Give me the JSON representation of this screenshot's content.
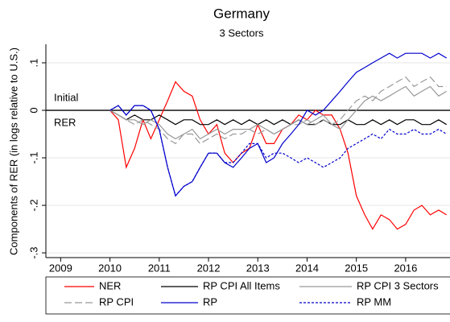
{
  "chart_data": {
    "type": "line",
    "title": "Germany",
    "subtitle": "3 Sectors",
    "y_label": "Components of RER (in logs relative to U.S.)",
    "annotations": [
      "Initial",
      "RER"
    ],
    "hline": 0,
    "x": [
      2010,
      2010.17,
      2010.33,
      2010.5,
      2010.67,
      2010.83,
      2011,
      2011.17,
      2011.33,
      2011.5,
      2011.67,
      2011.83,
      2012,
      2012.17,
      2012.33,
      2012.5,
      2012.67,
      2012.83,
      2013,
      2013.17,
      2013.33,
      2013.5,
      2013.67,
      2013.83,
      2014,
      2014.17,
      2014.33,
      2014.5,
      2014.67,
      2014.83,
      2015,
      2015.17,
      2015.33,
      2015.5,
      2015.67,
      2015.83,
      2016,
      2016.17,
      2016.33,
      2016.5,
      2016.67,
      2016.83
    ],
    "series": [
      {
        "name": "NER",
        "color": "#ff0000",
        "dashed": false,
        "values": [
          0,
          -0.02,
          -0.12,
          -0.08,
          -0.02,
          -0.06,
          -0.02,
          0.02,
          0.06,
          0.04,
          0.03,
          -0.02,
          -0.05,
          -0.03,
          -0.09,
          -0.11,
          -0.09,
          -0.08,
          -0.03,
          -0.07,
          -0.07,
          -0.04,
          -0.03,
          -0.01,
          -0.02,
          0,
          -0.01,
          -0.01,
          -0.04,
          -0.09,
          -0.18,
          -0.22,
          -0.25,
          -0.22,
          -0.23,
          -0.25,
          -0.24,
          -0.21,
          -0.2,
          -0.22,
          -0.21,
          -0.22
        ]
      },
      {
        "name": "RP CPI All Items",
        "color": "#000000",
        "dashed": false,
        "values": [
          0,
          -0.01,
          -0.02,
          -0.01,
          -0.02,
          -0.02,
          -0.01,
          -0.02,
          -0.03,
          -0.02,
          -0.02,
          -0.03,
          -0.03,
          -0.02,
          -0.03,
          -0.02,
          -0.03,
          -0.02,
          -0.03,
          -0.02,
          -0.03,
          -0.02,
          -0.03,
          -0.02,
          -0.03,
          -0.03,
          -0.02,
          -0.03,
          -0.03,
          -0.02,
          -0.03,
          -0.03,
          -0.02,
          -0.03,
          -0.02,
          -0.03,
          -0.02,
          -0.02,
          -0.03,
          -0.03,
          -0.02,
          -0.03
        ]
      },
      {
        "name": "RP CPI 3 Sectors",
        "color": "#999999",
        "dashed": false,
        "values": [
          0,
          -0.01,
          -0.02,
          -0.02,
          -0.03,
          -0.02,
          -0.03,
          -0.05,
          -0.06,
          -0.05,
          -0.04,
          -0.06,
          -0.05,
          -0.04,
          -0.05,
          -0.04,
          -0.04,
          -0.04,
          -0.03,
          -0.04,
          -0.05,
          -0.04,
          -0.03,
          -0.02,
          -0.03,
          -0.02,
          -0.01,
          -0.03,
          -0.04,
          -0.02,
          0,
          0.02,
          0.03,
          0.02,
          0.03,
          0.04,
          0.05,
          0.03,
          0.04,
          0.05,
          0.03,
          0.04
        ]
      },
      {
        "name": "RP CPI",
        "color": "#999999",
        "dashed": true,
        "values": [
          0,
          -0.01,
          -0.02,
          -0.03,
          -0.02,
          -0.03,
          -0.04,
          -0.06,
          -0.07,
          -0.05,
          -0.05,
          -0.07,
          -0.06,
          -0.05,
          -0.06,
          -0.05,
          -0.05,
          -0.04,
          -0.05,
          -0.04,
          -0.05,
          -0.04,
          -0.03,
          -0.03,
          -0.02,
          -0.03,
          -0.02,
          -0.03,
          -0.02,
          0,
          0.02,
          0.03,
          0.02,
          0.04,
          0.05,
          0.06,
          0.07,
          0.05,
          0.06,
          0.07,
          0.05,
          0.05
        ]
      },
      {
        "name": "RP",
        "color": "#0000cc",
        "dashed": false,
        "values": [
          0,
          0.01,
          -0.01,
          0.01,
          0.01,
          0,
          -0.04,
          -0.12,
          -0.18,
          -0.16,
          -0.15,
          -0.12,
          -0.09,
          -0.09,
          -0.11,
          -0.12,
          -0.1,
          -0.08,
          -0.07,
          -0.11,
          -0.1,
          -0.07,
          -0.05,
          -0.03,
          0,
          -0.01,
          0,
          0.02,
          0.04,
          0.06,
          0.08,
          0.09,
          0.1,
          0.11,
          0.12,
          0.11,
          0.12,
          0.12,
          0.12,
          0.11,
          0.12,
          0.11
        ]
      },
      {
        "name": "RP MM",
        "color": "#0000cc",
        "dashed": true,
        "values": [
          0,
          0.01,
          -0.01,
          0.01,
          0.01,
          0,
          -0.04,
          -0.12,
          -0.18,
          -0.16,
          -0.15,
          -0.12,
          -0.09,
          -0.09,
          -0.11,
          -0.11,
          -0.09,
          -0.07,
          -0.07,
          -0.1,
          -0.09,
          -0.09,
          -0.1,
          -0.11,
          -0.1,
          -0.11,
          -0.12,
          -0.11,
          -0.1,
          -0.08,
          -0.07,
          -0.06,
          -0.05,
          -0.06,
          -0.04,
          -0.05,
          -0.05,
          -0.04,
          -0.05,
          -0.05,
          -0.04,
          -0.05
        ]
      }
    ],
    "xlim": [
      2008.7,
      2016.9
    ],
    "xticks": [
      2009,
      2010,
      2011,
      2012,
      2013,
      2014,
      2015,
      2016
    ],
    "ylim": [
      -0.31,
      0.139
    ],
    "yticks": [
      {
        "value": 0.1,
        "label": ".1"
      },
      0,
      {
        "value": -0.1,
        "label": "-.1"
      },
      {
        "value": -0.2,
        "label": "-.2"
      },
      {
        "value": -0.3,
        "label": "-.3"
      }
    ],
    "grid": true
  }
}
